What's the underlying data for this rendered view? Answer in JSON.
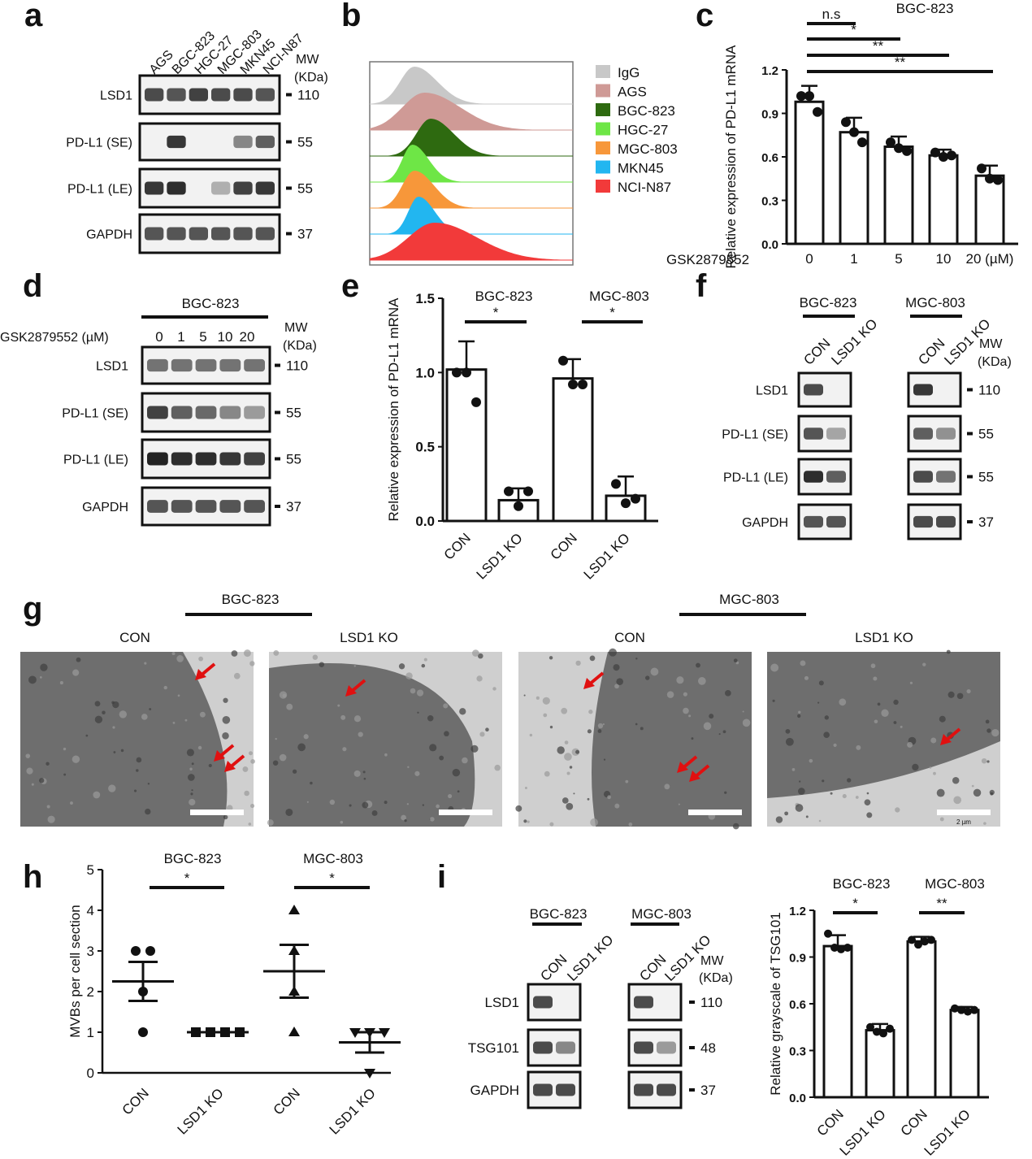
{
  "panels": {
    "a": {
      "letter": "a",
      "lanes": [
        "AGS",
        "BGC-823",
        "HGC-27",
        "MGC-803",
        "MKN45",
        "NCI-N87"
      ],
      "mw_header": [
        "MW",
        "(KDa)"
      ],
      "rows": [
        {
          "label": "LSD1",
          "mw": "110"
        },
        {
          "label": "PD-L1 (SE)",
          "mw": "55"
        },
        {
          "label": "PD-L1 (LE)",
          "mw": "55"
        },
        {
          "label": "GAPDH",
          "mw": "37"
        }
      ],
      "band_intensity": [
        [
          0.8,
          0.75,
          0.85,
          0.8,
          0.8,
          0.75
        ],
        [
          0.0,
          0.9,
          0.0,
          0.0,
          0.5,
          0.7
        ],
        [
          0.9,
          0.95,
          0.0,
          0.3,
          0.85,
          0.9
        ],
        [
          0.75,
          0.75,
          0.75,
          0.75,
          0.75,
          0.75
        ]
      ]
    },
    "b": {
      "letter": "b",
      "legend": [
        {
          "name": "IgG",
          "color": "#c8c8c8"
        },
        {
          "name": "AGS",
          "color": "#cf9a96"
        },
        {
          "name": "BGC-823",
          "color": "#2e6a10"
        },
        {
          "name": "HGC-27",
          "color": "#6ee646"
        },
        {
          "name": "MGC-803",
          "color": "#f7973a"
        },
        {
          "name": "MKN45",
          "color": "#22b6f0"
        },
        {
          "name": "NCI-N87",
          "color": "#f23a3a"
        }
      ]
    },
    "c": {
      "letter": "c",
      "title": "BGC-823",
      "significance": [
        "n.s",
        "*",
        "**",
        "**"
      ],
      "treatment_label": "GSK2879552",
      "unit": "(µM)"
    },
    "d": {
      "letter": "d",
      "group": "BGC-823",
      "dose_label": "GSK2879552 (µM)",
      "doses": [
        "0",
        "1",
        "5",
        "10",
        "20"
      ],
      "mw_header": [
        "MW",
        "(KDa)"
      ],
      "rows": [
        {
          "label": "LSD1",
          "mw": "110"
        },
        {
          "label": "PD-L1 (SE)",
          "mw": "55"
        },
        {
          "label": "PD-L1 (LE)",
          "mw": "55"
        },
        {
          "label": "GAPDH",
          "mw": "37"
        }
      ],
      "band_intensity": [
        [
          0.6,
          0.6,
          0.6,
          0.6,
          0.6
        ],
        [
          0.85,
          0.7,
          0.65,
          0.5,
          0.4
        ],
        [
          1.0,
          0.95,
          0.95,
          0.9,
          0.85
        ],
        [
          0.75,
          0.75,
          0.75,
          0.75,
          0.75
        ]
      ]
    },
    "e": {
      "letter": "e",
      "groups": [
        "BGC-823",
        "MGC-803"
      ],
      "significance": [
        "*",
        "*"
      ]
    },
    "f": {
      "letter": "f",
      "groups": [
        "BGC-823",
        "MGC-803"
      ],
      "lanes": [
        "CON",
        "LSD1 KO"
      ],
      "mw_header": [
        "MW",
        "(KDa)"
      ],
      "rows": [
        {
          "label": "LSD1",
          "mw": "110"
        },
        {
          "label": "PD-L1 (SE)",
          "mw": "55"
        },
        {
          "label": "PD-L1 (LE)",
          "mw": "55"
        },
        {
          "label": "GAPDH",
          "mw": "37"
        }
      ],
      "band_intensity": [
        [
          0.8,
          0.0,
          0.9,
          0.0
        ],
        [
          0.75,
          0.35,
          0.7,
          0.45
        ],
        [
          0.95,
          0.7,
          0.8,
          0.6
        ],
        [
          0.75,
          0.75,
          0.8,
          0.8
        ]
      ]
    },
    "g": {
      "letter": "g",
      "groups": [
        "BGC-823",
        "MGC-803"
      ],
      "images": [
        "CON",
        "LSD1 KO",
        "CON",
        "LSD1 KO"
      ],
      "scale_text": "2 µm"
    },
    "h": {
      "letter": "h",
      "groups": [
        "BGC-823",
        "MGC-803"
      ],
      "significance": [
        "*",
        "*"
      ]
    },
    "i": {
      "letter": "i",
      "groups": [
        "BGC-823",
        "MGC-803"
      ],
      "lanes": [
        "CON",
        "LSD1 KO"
      ],
      "mw_header": [
        "MW",
        "(KDa)"
      ],
      "rows": [
        {
          "label": "LSD1",
          "mw": "110"
        },
        {
          "label": "TSG101",
          "mw": "48"
        },
        {
          "label": "GAPDH",
          "mw": "37"
        }
      ],
      "band_intensity": [
        [
          0.8,
          0.0,
          0.8,
          0.0
        ],
        [
          0.8,
          0.5,
          0.8,
          0.4
        ],
        [
          0.8,
          0.8,
          0.8,
          0.8
        ]
      ],
      "chart_groups": [
        "BGC-823",
        "MGC-803"
      ],
      "chart_significance": [
        "*",
        "**"
      ]
    }
  },
  "chart_data": [
    {
      "id": "c",
      "type": "bar",
      "title": "BGC-823",
      "ylabel": "Relative expression of PD-L1 mRNA",
      "xlabel": "GSK2879552",
      "categories": [
        "0",
        "1",
        "5",
        "10",
        "20 (µM)"
      ],
      "values": [
        0.98,
        0.77,
        0.67,
        0.61,
        0.47
      ],
      "errors": [
        0.11,
        0.1,
        0.07,
        0.04,
        0.07
      ],
      "points": [
        [
          1.02,
          1.02,
          0.91
        ],
        [
          0.84,
          0.77,
          0.7
        ],
        [
          0.7,
          0.66,
          0.64
        ],
        [
          0.63,
          0.6,
          0.61
        ],
        [
          0.52,
          0.45,
          0.44
        ]
      ],
      "ylim": [
        0,
        1.2
      ],
      "yticks": [
        "0.0",
        "0.3",
        "0.6",
        "0.9",
        "1.2"
      ]
    },
    {
      "id": "e",
      "type": "bar",
      "ylabel": "Relative expression of PD-L1 mRNA",
      "categories": [
        "CON",
        "LSD1 KO",
        "CON",
        "LSD1 KO"
      ],
      "values": [
        1.02,
        0.14,
        0.96,
        0.17
      ],
      "errors": [
        0.19,
        0.08,
        0.13,
        0.13
      ],
      "points": [
        [
          1.0,
          1.0,
          0.8
        ],
        [
          0.2,
          0.1,
          0.2
        ],
        [
          1.08,
          0.92,
          0.92
        ],
        [
          0.25,
          0.12,
          0.15
        ]
      ],
      "ylim": [
        0,
        1.5
      ],
      "yticks": [
        "0.0",
        "0.5",
        "1.0",
        "1.5"
      ]
    },
    {
      "id": "h",
      "type": "scatter",
      "ylabel": "MVBs per cell section",
      "categories": [
        "CON",
        "LSD1 KO",
        "CON",
        "LSD1 KO"
      ],
      "points": [
        [
          3,
          3,
          2,
          1
        ],
        [
          1,
          1,
          1,
          1
        ],
        [
          4,
          3,
          2,
          1
        ],
        [
          1,
          1,
          1,
          0
        ]
      ],
      "means": [
        2.25,
        1.0,
        2.5,
        0.75
      ],
      "sem": [
        0.48,
        0.0,
        0.65,
        0.25
      ],
      "ylim": [
        0,
        5
      ],
      "yticks": [
        "0",
        "1",
        "2",
        "3",
        "4",
        "5"
      ]
    },
    {
      "id": "i",
      "type": "bar",
      "ylabel": "Relative grayscale of TSG101",
      "categories": [
        "CON",
        "LSD1 KO",
        "CON",
        "LSD1 KO"
      ],
      "values": [
        0.97,
        0.43,
        1.0,
        0.56
      ],
      "errors": [
        0.07,
        0.04,
        0.03,
        0.02
      ],
      "points": [
        [
          1.05,
          0.96,
          0.95,
          0.96
        ],
        [
          0.45,
          0.42,
          0.41,
          0.44
        ],
        [
          1.01,
          0.98,
          1.0,
          1.01
        ],
        [
          0.57,
          0.56,
          0.55,
          0.56
        ]
      ],
      "ylim": [
        0,
        1.2
      ],
      "yticks": [
        "0.0",
        "0.3",
        "0.6",
        "0.9",
        "1.2"
      ]
    }
  ]
}
